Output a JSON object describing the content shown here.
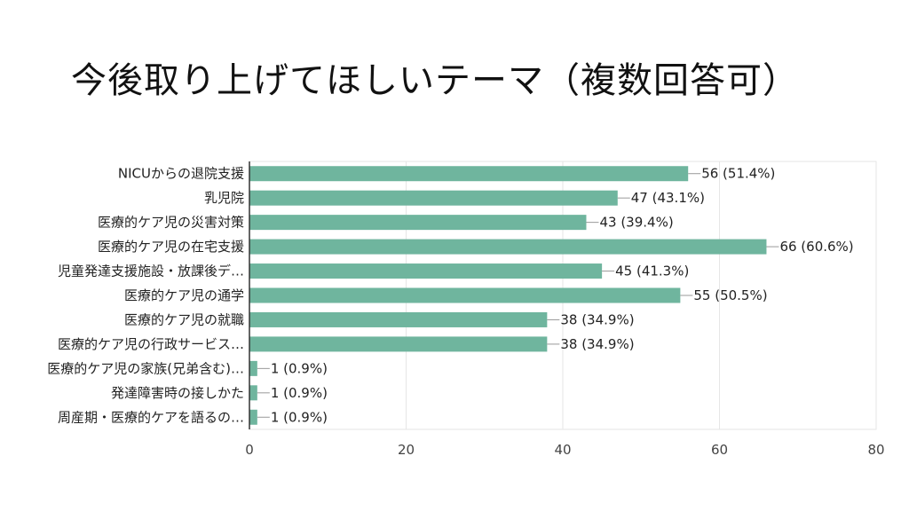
{
  "chart_data": {
    "type": "bar",
    "orientation": "horizontal",
    "title": "今後取り上げてほしいテーマ（複数回答可）",
    "xlabel": "",
    "ylabel": "",
    "xlim": [
      0,
      80
    ],
    "xticks": [
      0,
      20,
      40,
      60,
      80
    ],
    "grid": true,
    "color": "#6fb59e",
    "categories": [
      "NICUからの退院支援",
      "乳児院",
      "医療的ケア児の災害対策",
      "医療的ケア児の在宅支援",
      "児童発達支援施設・放課後デ…",
      "医療的ケア児の通学",
      "医療的ケア児の就職",
      "医療的ケア児の行政サービス…",
      "医療的ケア児の家族(兄弟含む)…",
      "発達障害時の接しかた",
      "周産期・医療的ケアを語るの…"
    ],
    "values": [
      56,
      47,
      43,
      66,
      45,
      55,
      38,
      38,
      1,
      1,
      1
    ],
    "data_labels": [
      "56 (51.4%)",
      "47 (43.1%)",
      "43 (39.4%)",
      "66 (60.6%)",
      "45 (41.3%)",
      "55 (50.5%)",
      "38 (34.9%)",
      "38 (34.9%)",
      "1 (0.9%)",
      "1 (0.9%)",
      "1 (0.9%)"
    ]
  }
}
